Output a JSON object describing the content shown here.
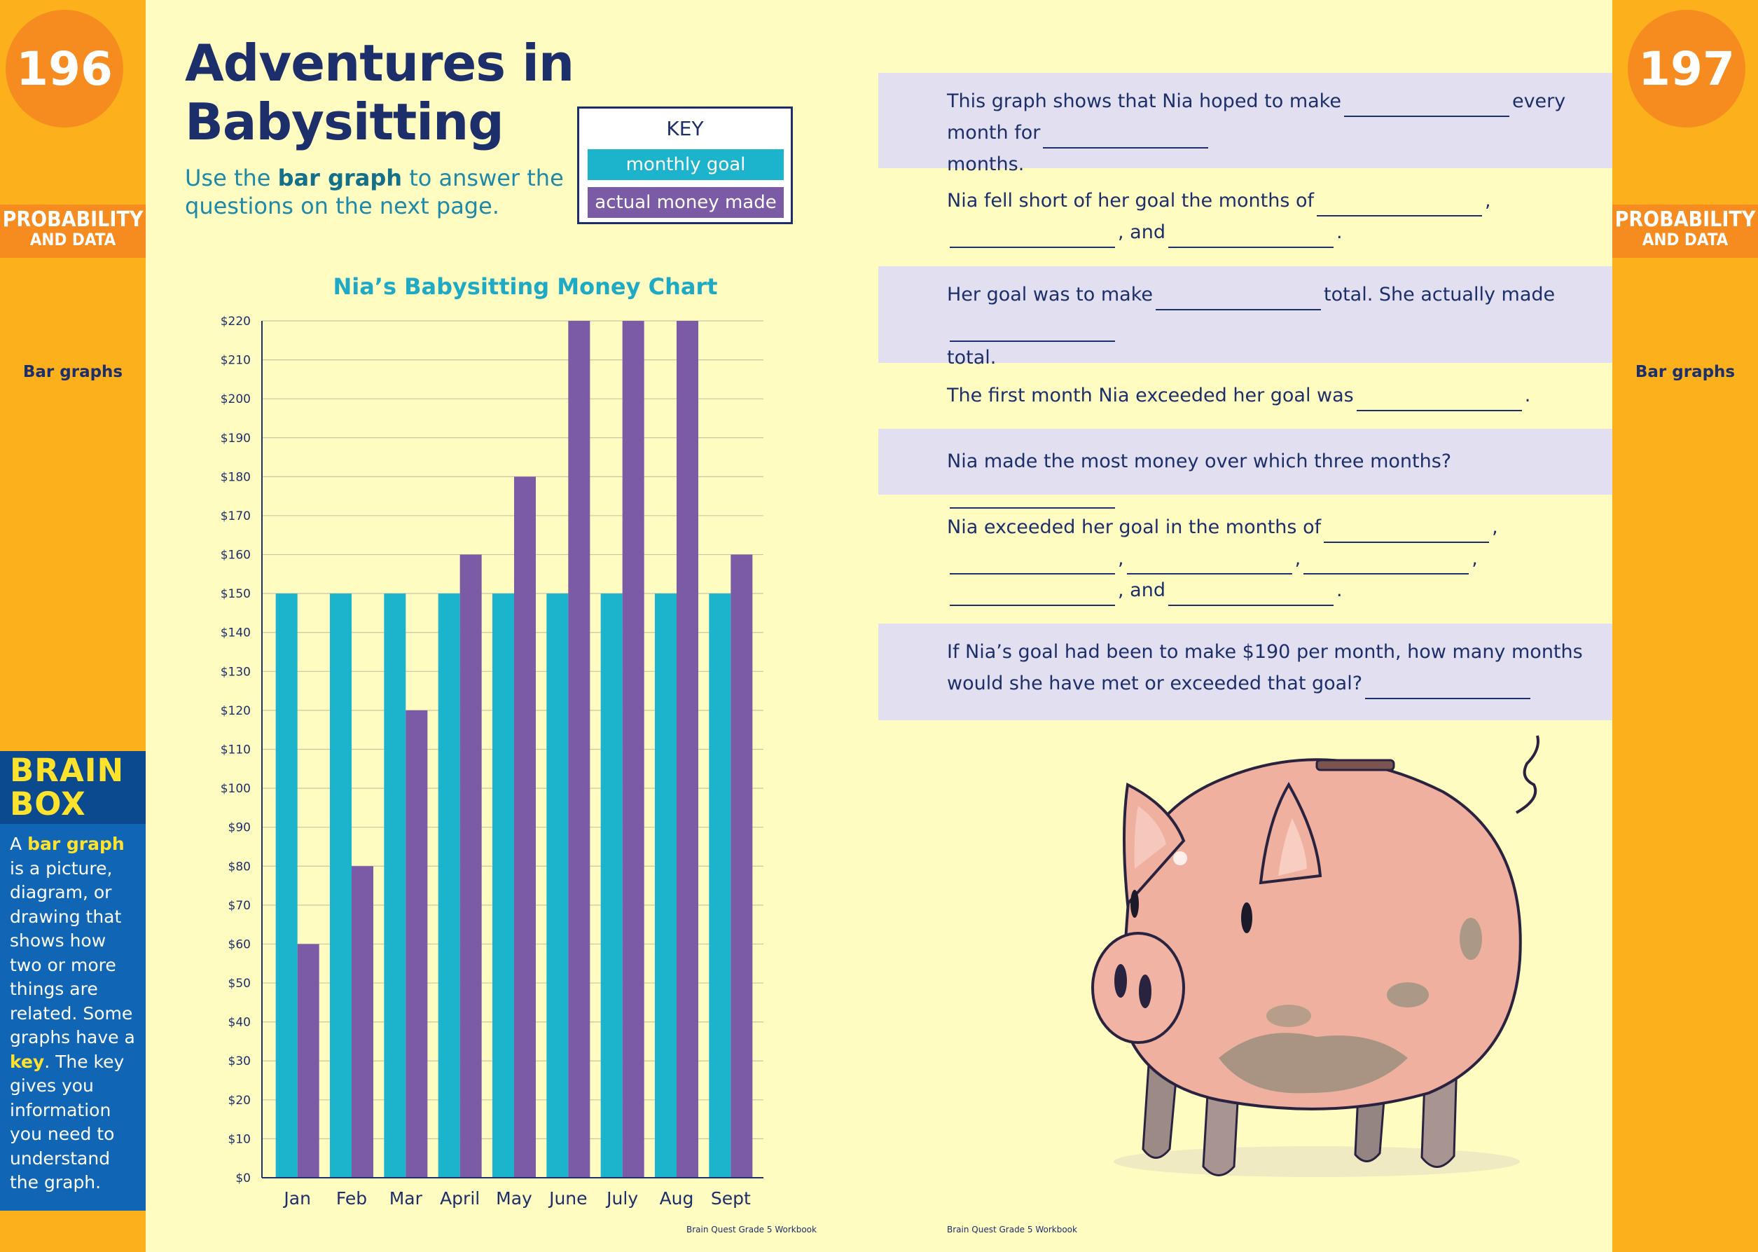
{
  "left_page": {
    "page_number": "196",
    "section_line1": "PROBABILITY",
    "section_line2": "AND DATA",
    "topic": "Bar graphs",
    "title_line1": "Adventures in",
    "title_line2": "Babysitting",
    "instruction_prefix": "Use the ",
    "instruction_bold": "bar graph",
    "instruction_suffix": " to answer the questions on the next page.",
    "key": {
      "title": "KEY",
      "goal_label": "monthly goal",
      "actual_label": "actual money made",
      "goal_color": "#1cb3cc",
      "actual_color": "#7b5aa6"
    },
    "brain_box": {
      "title_line1": "BRAIN",
      "title_line2": "BOX",
      "text_1": "A ",
      "text_2": "bar graph",
      "text_3": " is a picture, diagram, or drawing that shows how two or more things are related. Some graphs have a ",
      "text_4": "key",
      "text_5": ". The key gives you information you need to understand the graph."
    },
    "footer": "Brain Quest Grade 5 Workbook"
  },
  "right_page": {
    "page_number": "197",
    "section_line1": "PROBABILITY",
    "section_line2": "AND DATA",
    "topic": "Bar graphs",
    "questions": [
      {
        "parts": [
          "This graph shows that Nia hoped to make",
          "every month for",
          "months."
        ]
      },
      {
        "parts": [
          "Nia fell short of her goal the months of",
          ",",
          ", and",
          "."
        ]
      },
      {
        "parts": [
          "Her goal was to make",
          "total. She actually made",
          "total."
        ]
      },
      {
        "parts": [
          "The first month Nia exceeded her goal was",
          "."
        ]
      },
      {
        "parts": [
          "Nia made the most money over which three months?"
        ]
      },
      {
        "parts": [
          "Nia exceeded her goal in the months of",
          ",",
          ",",
          ",",
          ",",
          ", and",
          "."
        ]
      },
      {
        "parts": [
          "If Nia’s goal had been to make $190 per month, how many months would she have met or exceeded that goal?"
        ]
      }
    ],
    "illustration": "piggy-bank",
    "footer": "Brain Quest Grade 5 Workbook"
  },
  "chart_data": {
    "type": "bar",
    "title": "Nia’s Babysitting Money Chart",
    "categories": [
      "Jan",
      "Feb",
      "Mar",
      "April",
      "May",
      "June",
      "July",
      "Aug",
      "Sept"
    ],
    "series": [
      {
        "name": "monthly goal",
        "color": "#1cb3cc",
        "values": [
          150,
          150,
          150,
          150,
          150,
          150,
          150,
          150,
          150
        ]
      },
      {
        "name": "actual money made",
        "color": "#7b5aa6",
        "values": [
          60,
          80,
          120,
          160,
          180,
          220,
          220,
          220,
          160
        ]
      }
    ],
    "ylim": [
      0,
      220
    ],
    "y_ticks": [
      "$0",
      "$10",
      "$20",
      "$30",
      "$40",
      "$50",
      "$60",
      "$70",
      "$80",
      "$90",
      "$100",
      "$110",
      "$120",
      "$130",
      "$140",
      "$150",
      "$160",
      "$170",
      "$180",
      "$190",
      "$200",
      "$210",
      "$220"
    ],
    "grid": true
  }
}
